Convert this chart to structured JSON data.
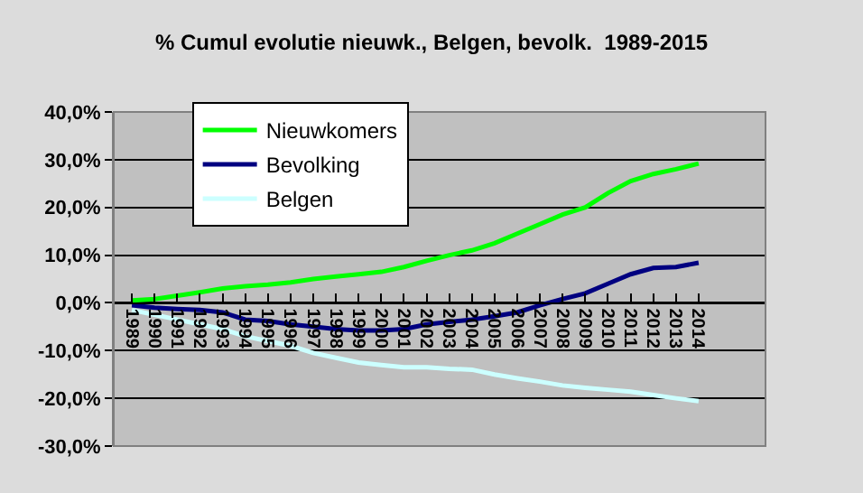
{
  "chart_data": {
    "type": "line",
    "title": "% Cumul evolutie nieuwk., Belgen, bevolk.  1989-2015",
    "categories": [
      "1989",
      "1990",
      "1991",
      "1992",
      "1993",
      "1994",
      "1995",
      "1996",
      "1997",
      "1998",
      "1999",
      "2000",
      "2001",
      "2002",
      "2003",
      "2004",
      "2005",
      "2006",
      "2007",
      "2008",
      "2009",
      "2010",
      "2011",
      "2012",
      "2013",
      "2014"
    ],
    "series": [
      {
        "name": "Nieuwkomers",
        "color": "#00ff00",
        "values": [
          0.5,
          0.8,
          1.5,
          2.2,
          3.0,
          3.5,
          3.8,
          4.3,
          5.0,
          5.5,
          6.0,
          6.5,
          7.5,
          8.8,
          10.0,
          11.0,
          12.5,
          14.5,
          16.5,
          18.5,
          20.0,
          23.0,
          25.5,
          27.0,
          28.0,
          29.2
        ]
      },
      {
        "name": "Bevolking",
        "color": "#000080",
        "values": [
          -0.5,
          -1.0,
          -1.3,
          -1.5,
          -2.0,
          -3.5,
          -3.8,
          -4.5,
          -5.0,
          -5.5,
          -5.8,
          -5.8,
          -5.5,
          -4.5,
          -4.0,
          -3.5,
          -2.8,
          -2.0,
          -0.5,
          0.8,
          2.0,
          4.0,
          6.0,
          7.3,
          7.5,
          8.4
        ]
      },
      {
        "name": "Belgen",
        "color": "#ccffff",
        "values": [
          -1.5,
          -2.5,
          -3.5,
          -4.5,
          -5.5,
          -7.0,
          -8.0,
          -9.0,
          -10.5,
          -11.5,
          -12.5,
          -13.0,
          -13.5,
          -13.5,
          -13.8,
          -14.0,
          -15.0,
          -15.8,
          -16.5,
          -17.3,
          -17.8,
          -18.2,
          -18.6,
          -19.3,
          -20.0,
          -20.6
        ]
      }
    ],
    "ylim": [
      -30,
      40
    ],
    "yticks": [
      {
        "value": -30,
        "label": "-30,0%"
      },
      {
        "value": -20,
        "label": "-20,0%"
      },
      {
        "value": -10,
        "label": "-10,0%"
      },
      {
        "value": 0,
        "label": "0,0%"
      },
      {
        "value": 10,
        "label": "10,0%"
      },
      {
        "value": 20,
        "label": "20,0%"
      },
      {
        "value": 30,
        "label": "30,0%"
      },
      {
        "value": 40,
        "label": "40,0%"
      }
    ],
    "grid": "y",
    "legend": "top left",
    "marker": "none",
    "line_style": "solid"
  }
}
